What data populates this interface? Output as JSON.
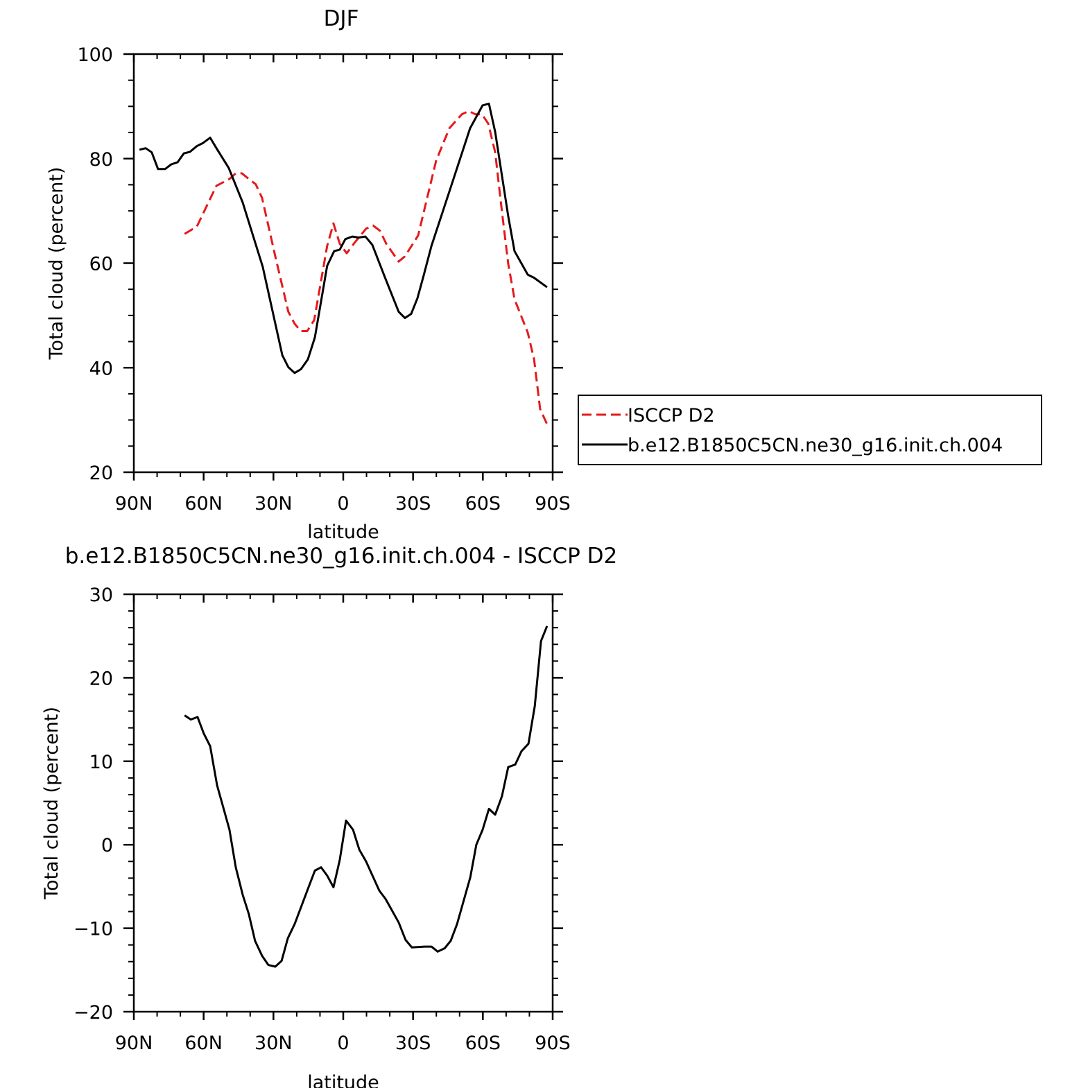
{
  "chart_data": [
    {
      "type": "line",
      "title": "DJF",
      "xlabel": "latitude",
      "ylabel": "Total cloud (percent)",
      "xlim": [
        90,
        -90
      ],
      "xticks": [
        {
          "value": 90,
          "label": "90N"
        },
        {
          "value": 60,
          "label": "60N"
        },
        {
          "value": 30,
          "label": "30N"
        },
        0,
        {
          "value": -30,
          "label": "30S"
        },
        {
          "value": -60,
          "label": "60S"
        },
        {
          "value": -90,
          "label": "90S"
        }
      ],
      "xminorticks": [
        80,
        70,
        50,
        40,
        20,
        10,
        -10,
        -20,
        -40,
        -50,
        -70,
        -80
      ],
      "ylim": [
        20,
        100
      ],
      "yticks": [
        20,
        40,
        60,
        80,
        100
      ],
      "yminorticks": [
        25,
        30,
        35,
        45,
        50,
        55,
        65,
        70,
        75,
        85,
        90,
        95
      ],
      "legend": "right",
      "series": [
        {
          "name": "ISCCP D2",
          "color": "#e41a1c",
          "dash": true,
          "x": [
            68.2,
            62.9,
            54.5,
            48.9,
            46.2,
            43.6,
            40.6,
            37.6,
            34.9,
            29.2,
            23.6,
            20.9,
            18.2,
            15.5,
            12.5,
            6.9,
            4.2,
            1.5,
            -1.5,
            -4.5,
            -9.8,
            -12.8,
            -15.8,
            -18.5,
            -23.8,
            -26.5,
            -32.2,
            -39.9,
            -45.6,
            -51.0,
            -54.0,
            -56.7,
            -59.6,
            -62.3,
            -65.3,
            -68.0,
            -70.9,
            -73.6,
            -79.3,
            -82.0,
            -84.6,
            -87.6
          ],
          "values": [
            65.6,
            67.0,
            74.8,
            76.1,
            77.2,
            77.2,
            76.1,
            75.1,
            72.5,
            61.3,
            50.7,
            48.4,
            47.0,
            47.0,
            49.1,
            63.3,
            67.6,
            63.7,
            61.9,
            63.7,
            66.6,
            67.2,
            66.2,
            63.7,
            60.3,
            61.3,
            65.3,
            79.6,
            85.8,
            88.5,
            89.1,
            88.5,
            88.5,
            86.7,
            81.2,
            70.6,
            59.9,
            53.1,
            46.7,
            41.6,
            32.1,
            29.2
          ]
        },
        {
          "name": "b.e12.B1850C5CN.ne30_g16.init.ch.004",
          "color": "#000000",
          "dash": false,
          "x": [
            87.6,
            84.9,
            82.3,
            79.6,
            76.6,
            73.9,
            71.2,
            68.5,
            65.9,
            62.9,
            60.2,
            57.2,
            54.5,
            49.2,
            43.2,
            34.6,
            26.2,
            23.6,
            20.9,
            18.2,
            15.2,
            12.2,
            6.9,
            3.9,
            1.5,
            -0.9,
            -3.9,
            -6.6,
            -9.5,
            -12.5,
            -17.9,
            -23.8,
            -26.5,
            -29.2,
            -31.9,
            -34.6,
            -37.9,
            -46.2,
            -54.5,
            -59.9,
            -62.6,
            -65.3,
            -70.9,
            -73.6,
            -79.3,
            -82.0,
            -87.6
          ],
          "values": [
            81.7,
            82.0,
            81.2,
            78.0,
            78.0,
            78.9,
            79.3,
            81.0,
            81.3,
            82.4,
            83.0,
            84.0,
            82.0,
            78.2,
            71.6,
            59.3,
            42.4,
            40.1,
            39.0,
            39.7,
            41.6,
            45.8,
            59.5,
            62.3,
            62.6,
            64.6,
            65.1,
            64.9,
            65.1,
            63.5,
            57.3,
            50.7,
            49.5,
            50.3,
            53.3,
            57.7,
            63.3,
            74.5,
            85.8,
            90.2,
            90.5,
            85.1,
            69.0,
            62.3,
            57.8,
            57.2,
            55.4
          ]
        }
      ]
    },
    {
      "type": "line",
      "title": "b.e12.B1850C5CN.ne30_g16.init.ch.004 - ISCCP D2",
      "xlabel": "latitude",
      "ylabel": "Total cloud (percent)",
      "xlim": [
        90,
        -90
      ],
      "xticks": [
        {
          "value": 90,
          "label": "90N"
        },
        {
          "value": 60,
          "label": "60N"
        },
        {
          "value": 30,
          "label": "30N"
        },
        0,
        {
          "value": -30,
          "label": "30S"
        },
        {
          "value": -60,
          "label": "60S"
        },
        {
          "value": -90,
          "label": "90S"
        }
      ],
      "xminorticks": [
        80,
        70,
        50,
        40,
        20,
        10,
        -10,
        -20,
        -40,
        -50,
        -70,
        -80
      ],
      "ylim": [
        -20,
        30
      ],
      "yticks": [
        {
          "value": -20,
          "label": "−20"
        },
        {
          "value": -10,
          "label": "−10"
        },
        0,
        10,
        20,
        30
      ],
      "yminorticks": [
        28,
        26,
        24,
        22,
        18,
        16,
        14,
        12,
        8,
        6,
        4,
        2,
        -2,
        -4,
        -6,
        -8,
        -12,
        -14,
        -16,
        -18
      ],
      "series": [
        {
          "color": "#000000",
          "dash": false,
          "x": [
            68.2,
            65.5,
            62.6,
            59.9,
            57.2,
            54.2,
            51.5,
            48.9,
            46.2,
            43.2,
            40.6,
            37.9,
            34.9,
            32.2,
            29.2,
            26.5,
            23.8,
            20.9,
            15.2,
            12.2,
            9.5,
            6.9,
            4.2,
            1.5,
            -1.2,
            -4.2,
            -6.9,
            -9.8,
            -15.5,
            -18.2,
            -23.8,
            -26.8,
            -29.5,
            -34.9,
            -37.9,
            -40.6,
            -43.6,
            -46.2,
            -48.9,
            -54.6,
            -57.2,
            -59.9,
            -62.6,
            -65.3,
            -68.2,
            -70.9,
            -73.9,
            -76.6,
            -79.6,
            -82.3,
            -85.0,
            -87.6
          ],
          "values": [
            15.5,
            15.0,
            15.3,
            13.3,
            11.8,
            7.1,
            4.4,
            1.8,
            -2.7,
            -6.0,
            -8.3,
            -11.5,
            -13.3,
            -14.4,
            -14.6,
            -13.9,
            -11.2,
            -9.5,
            -5.3,
            -3.1,
            -2.7,
            -3.7,
            -5.1,
            -1.8,
            2.9,
            1.8,
            -0.6,
            -2.0,
            -5.5,
            -6.5,
            -9.3,
            -11.4,
            -12.3,
            -12.2,
            -12.2,
            -12.8,
            -12.4,
            -11.5,
            -9.5,
            -3.9,
            0.0,
            1.8,
            4.3,
            3.6,
            5.8,
            9.3,
            9.6,
            11.2,
            12.1,
            16.6,
            24.4,
            26.2
          ]
        }
      ]
    }
  ]
}
